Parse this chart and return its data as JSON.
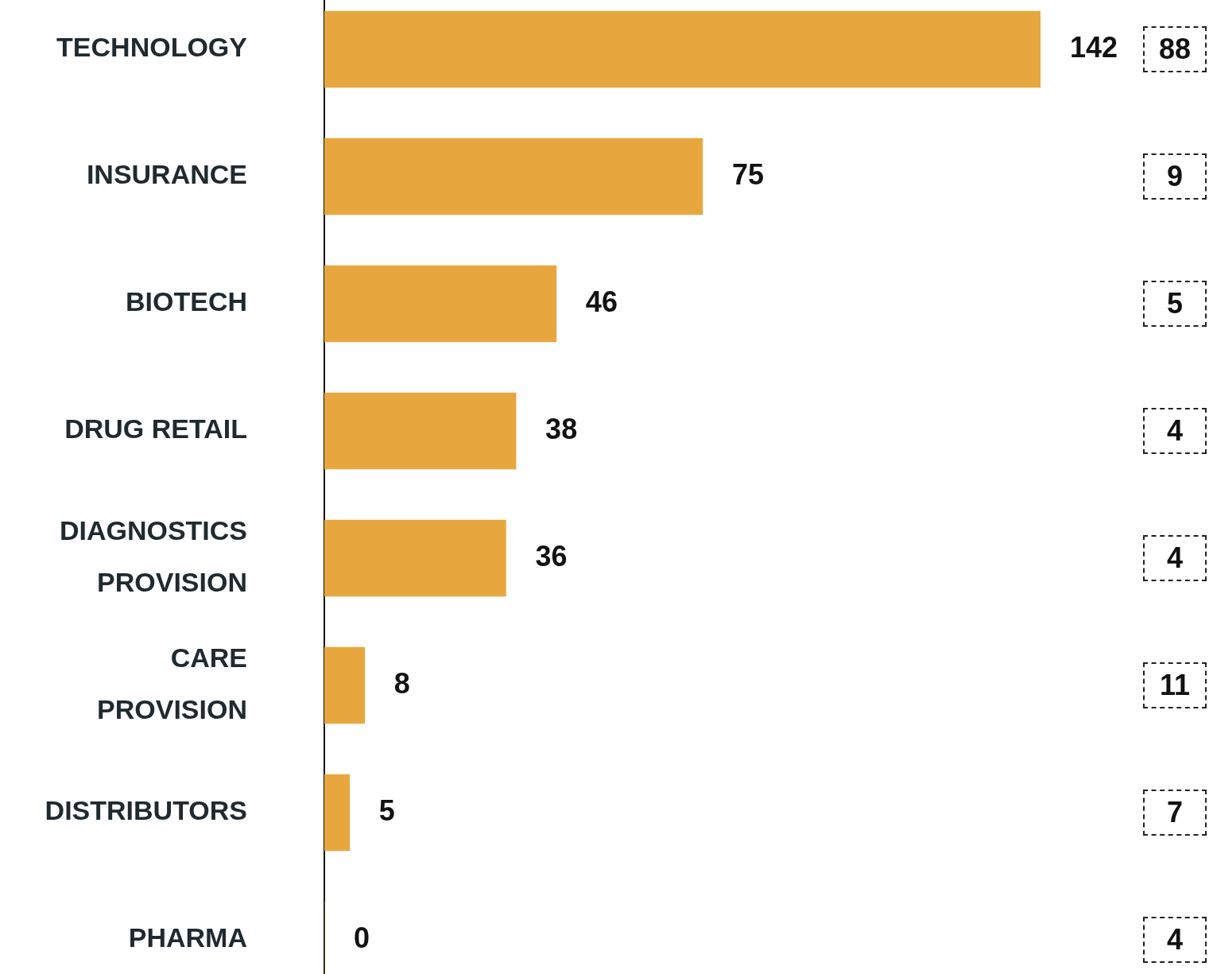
{
  "chart_data": {
    "type": "bar",
    "orientation": "horizontal",
    "categories": [
      "TECHNOLOGY",
      "INSURANCE",
      "BIOTECH",
      "DRUG RETAIL",
      "DIAGNOSTICS PROVISION",
      "CARE PROVISION",
      "DISTRIBUTORS",
      "PHARMA"
    ],
    "values": [
      142,
      75,
      46,
      38,
      36,
      8,
      5,
      0
    ],
    "color": "#e8a73e",
    "xlim": [
      0,
      142
    ],
    "data_labels": true,
    "tick_labels": "y",
    "annotations": [
      "88",
      "9",
      "5",
      "4",
      "4",
      "11",
      "7",
      "4"
    ]
  }
}
